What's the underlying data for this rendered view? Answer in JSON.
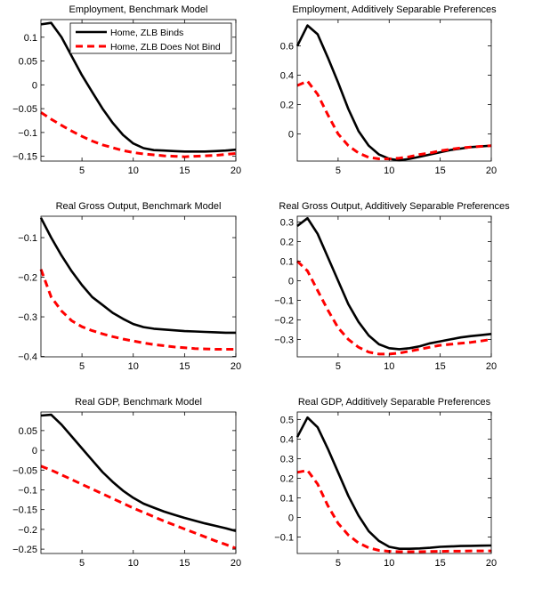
{
  "legend": {
    "entries": [
      {
        "name": "Home, ZLB Binds",
        "color": "#000000",
        "style": "solid"
      },
      {
        "name": "Home, ZLB Does Not Bind",
        "color": "#ff0000",
        "style": "dashed"
      }
    ],
    "placement": "top-right of first panel"
  },
  "chart_data": [
    {
      "type": "line",
      "title": "Employment, Benchmark Model",
      "x": [
        1,
        2,
        3,
        4,
        5,
        6,
        7,
        8,
        9,
        10,
        11,
        12,
        13,
        14,
        15,
        16,
        17,
        18,
        19,
        20
      ],
      "xlim": [
        1,
        20
      ],
      "xticks": [
        5,
        10,
        15,
        20
      ],
      "ylim": [
        -0.16,
        0.137
      ],
      "yticks": [
        -0.15,
        -0.1,
        -0.05,
        0,
        0.05,
        0.1
      ],
      "yticklabels": [
        "−0.15",
        "−0.1",
        "−0.05",
        "0",
        "0.05",
        "0.1"
      ],
      "grid": false,
      "series": [
        {
          "name": "Home, ZLB Binds",
          "color": "#000000",
          "values": [
            0.127,
            0.13,
            0.1,
            0.06,
            0.02,
            -0.015,
            -0.05,
            -0.08,
            -0.105,
            -0.123,
            -0.133,
            -0.137,
            -0.138,
            -0.139,
            -0.14,
            -0.14,
            -0.14,
            -0.139,
            -0.138,
            -0.136
          ]
        },
        {
          "name": "Home, ZLB Does Not Bind",
          "color": "#ff0000",
          "values": [
            -0.058,
            -0.072,
            -0.085,
            -0.097,
            -0.108,
            -0.118,
            -0.126,
            -0.132,
            -0.138,
            -0.142,
            -0.145,
            -0.147,
            -0.149,
            -0.15,
            -0.151,
            -0.15,
            -0.149,
            -0.148,
            -0.146,
            -0.144
          ]
        }
      ]
    },
    {
      "type": "line",
      "title": "Employment, Additively Separable Preferences",
      "x": [
        1,
        2,
        3,
        4,
        5,
        6,
        7,
        8,
        9,
        10,
        11,
        12,
        13,
        14,
        15,
        16,
        17,
        18,
        19,
        20
      ],
      "xlim": [
        1,
        20
      ],
      "xticks": [
        5,
        10,
        15,
        20
      ],
      "ylim": [
        -0.185,
        0.78
      ],
      "yticks": [
        0,
        0.2,
        0.4,
        0.6
      ],
      "yticklabels": [
        "0",
        "0.2",
        "0.4",
        "0.6"
      ],
      "grid": false,
      "series": [
        {
          "name": "Home, ZLB Binds",
          "color": "#000000",
          "values": [
            0.6,
            0.74,
            0.68,
            0.52,
            0.35,
            0.17,
            0.02,
            -0.08,
            -0.14,
            -0.17,
            -0.18,
            -0.17,
            -0.155,
            -0.14,
            -0.125,
            -0.11,
            -0.1,
            -0.09,
            -0.085,
            -0.08
          ]
        },
        {
          "name": "Home, ZLB Does Not Bind",
          "color": "#ff0000",
          "values": [
            0.33,
            0.36,
            0.27,
            0.13,
            0.0,
            -0.08,
            -0.13,
            -0.16,
            -0.17,
            -0.17,
            -0.165,
            -0.155,
            -0.14,
            -0.13,
            -0.115,
            -0.105,
            -0.095,
            -0.09,
            -0.085,
            -0.08
          ]
        }
      ]
    },
    {
      "type": "line",
      "title": "Real Gross Output, Benchmark Model",
      "x": [
        1,
        2,
        3,
        4,
        5,
        6,
        7,
        8,
        9,
        10,
        11,
        12,
        13,
        14,
        15,
        16,
        17,
        18,
        19,
        20
      ],
      "xlim": [
        1,
        20
      ],
      "xticks": [
        5,
        10,
        15,
        20
      ],
      "ylim": [
        -0.401,
        -0.046
      ],
      "yticks": [
        -0.4,
        -0.3,
        -0.2,
        -0.1
      ],
      "yticklabels": [
        "−0.4",
        "−0.3",
        "−0.2",
        "−0.1"
      ],
      "grid": false,
      "series": [
        {
          "name": "Home, ZLB Binds",
          "color": "#000000",
          "values": [
            -0.05,
            -0.1,
            -0.145,
            -0.185,
            -0.22,
            -0.25,
            -0.27,
            -0.29,
            -0.305,
            -0.318,
            -0.326,
            -0.33,
            -0.332,
            -0.334,
            -0.336,
            -0.337,
            -0.338,
            -0.339,
            -0.34,
            -0.34
          ]
        },
        {
          "name": "Home, ZLB Does Not Bind",
          "color": "#ff0000",
          "values": [
            -0.18,
            -0.25,
            -0.285,
            -0.31,
            -0.325,
            -0.335,
            -0.343,
            -0.35,
            -0.356,
            -0.361,
            -0.366,
            -0.37,
            -0.373,
            -0.376,
            -0.378,
            -0.38,
            -0.381,
            -0.382,
            -0.382,
            -0.382
          ]
        }
      ]
    },
    {
      "type": "line",
      "title": "Real Gross Output, Additively Separable Preferences",
      "x": [
        1,
        2,
        3,
        4,
        5,
        6,
        7,
        8,
        9,
        10,
        11,
        12,
        13,
        14,
        15,
        16,
        17,
        18,
        19,
        20
      ],
      "xlim": [
        1,
        20
      ],
      "xticks": [
        5,
        10,
        15,
        20
      ],
      "ylim": [
        -0.389,
        0.33
      ],
      "yticks": [
        -0.3,
        -0.2,
        -0.1,
        0,
        0.1,
        0.2,
        0.3
      ],
      "yticklabels": [
        "−0.3",
        "−0.2",
        "−0.1",
        "0",
        "0.1",
        "0.2",
        "0.3"
      ],
      "grid": false,
      "series": [
        {
          "name": "Home, ZLB Binds",
          "color": "#000000",
          "values": [
            0.28,
            0.32,
            0.24,
            0.12,
            0.0,
            -0.12,
            -0.21,
            -0.28,
            -0.325,
            -0.345,
            -0.35,
            -0.345,
            -0.335,
            -0.32,
            -0.31,
            -0.3,
            -0.29,
            -0.283,
            -0.278,
            -0.272
          ]
        },
        {
          "name": "Home, ZLB Does Not Bind",
          "color": "#ff0000",
          "values": [
            0.1,
            0.05,
            -0.05,
            -0.15,
            -0.24,
            -0.3,
            -0.34,
            -0.365,
            -0.375,
            -0.375,
            -0.37,
            -0.36,
            -0.35,
            -0.34,
            -0.33,
            -0.325,
            -0.32,
            -0.315,
            -0.308,
            -0.3
          ]
        }
      ]
    },
    {
      "type": "line",
      "title": "Real GDP, Benchmark Model",
      "x": [
        1,
        2,
        3,
        4,
        5,
        6,
        7,
        8,
        9,
        10,
        11,
        12,
        13,
        14,
        15,
        16,
        17,
        18,
        19,
        20
      ],
      "xlim": [
        1,
        20
      ],
      "xticks": [
        5,
        10,
        15,
        20
      ],
      "ylim": [
        -0.261,
        0.097
      ],
      "yticks": [
        -0.25,
        -0.2,
        -0.15,
        -0.1,
        -0.05,
        0,
        0.05
      ],
      "yticklabels": [
        "−0.25",
        "−0.2",
        "−0.15",
        "−0.1",
        "−0.05",
        "0",
        "0.05"
      ],
      "grid": false,
      "series": [
        {
          "name": "Home, ZLB Binds",
          "color": "#000000",
          "values": [
            0.088,
            0.09,
            0.065,
            0.035,
            0.005,
            -0.025,
            -0.055,
            -0.08,
            -0.102,
            -0.12,
            -0.135,
            -0.145,
            -0.155,
            -0.163,
            -0.171,
            -0.178,
            -0.185,
            -0.191,
            -0.197,
            -0.204
          ]
        },
        {
          "name": "Home, ZLB Does Not Bind",
          "color": "#ff0000",
          "values": [
            -0.04,
            -0.05,
            -0.062,
            -0.074,
            -0.086,
            -0.098,
            -0.11,
            -0.122,
            -0.134,
            -0.146,
            -0.157,
            -0.168,
            -0.179,
            -0.189,
            -0.199,
            -0.209,
            -0.219,
            -0.229,
            -0.238,
            -0.248
          ]
        }
      ]
    },
    {
      "type": "line",
      "title": "Real GDP, Additively Separable Preferences",
      "x": [
        1,
        2,
        3,
        4,
        5,
        6,
        7,
        8,
        9,
        10,
        11,
        12,
        13,
        14,
        15,
        16,
        17,
        18,
        19,
        20
      ],
      "xlim": [
        1,
        20
      ],
      "xticks": [
        5,
        10,
        15,
        20
      ],
      "ylim": [
        -0.184,
        0.538
      ],
      "yticks": [
        -0.1,
        0,
        0.1,
        0.2,
        0.3,
        0.4,
        0.5
      ],
      "yticklabels": [
        "−0.1",
        "0",
        "0.1",
        "0.2",
        "0.3",
        "0.4",
        "0.5"
      ],
      "grid": false,
      "series": [
        {
          "name": "Home, ZLB Binds",
          "color": "#000000",
          "values": [
            0.41,
            0.51,
            0.46,
            0.35,
            0.23,
            0.11,
            0.01,
            -0.07,
            -0.12,
            -0.15,
            -0.16,
            -0.16,
            -0.158,
            -0.155,
            -0.15,
            -0.148,
            -0.146,
            -0.145,
            -0.144,
            -0.143
          ]
        },
        {
          "name": "Home, ZLB Does Not Bind",
          "color": "#ff0000",
          "values": [
            0.23,
            0.24,
            0.17,
            0.06,
            -0.03,
            -0.09,
            -0.13,
            -0.155,
            -0.168,
            -0.173,
            -0.175,
            -0.175,
            -0.175,
            -0.174,
            -0.173,
            -0.172,
            -0.172,
            -0.171,
            -0.171,
            -0.171
          ]
        }
      ]
    }
  ]
}
